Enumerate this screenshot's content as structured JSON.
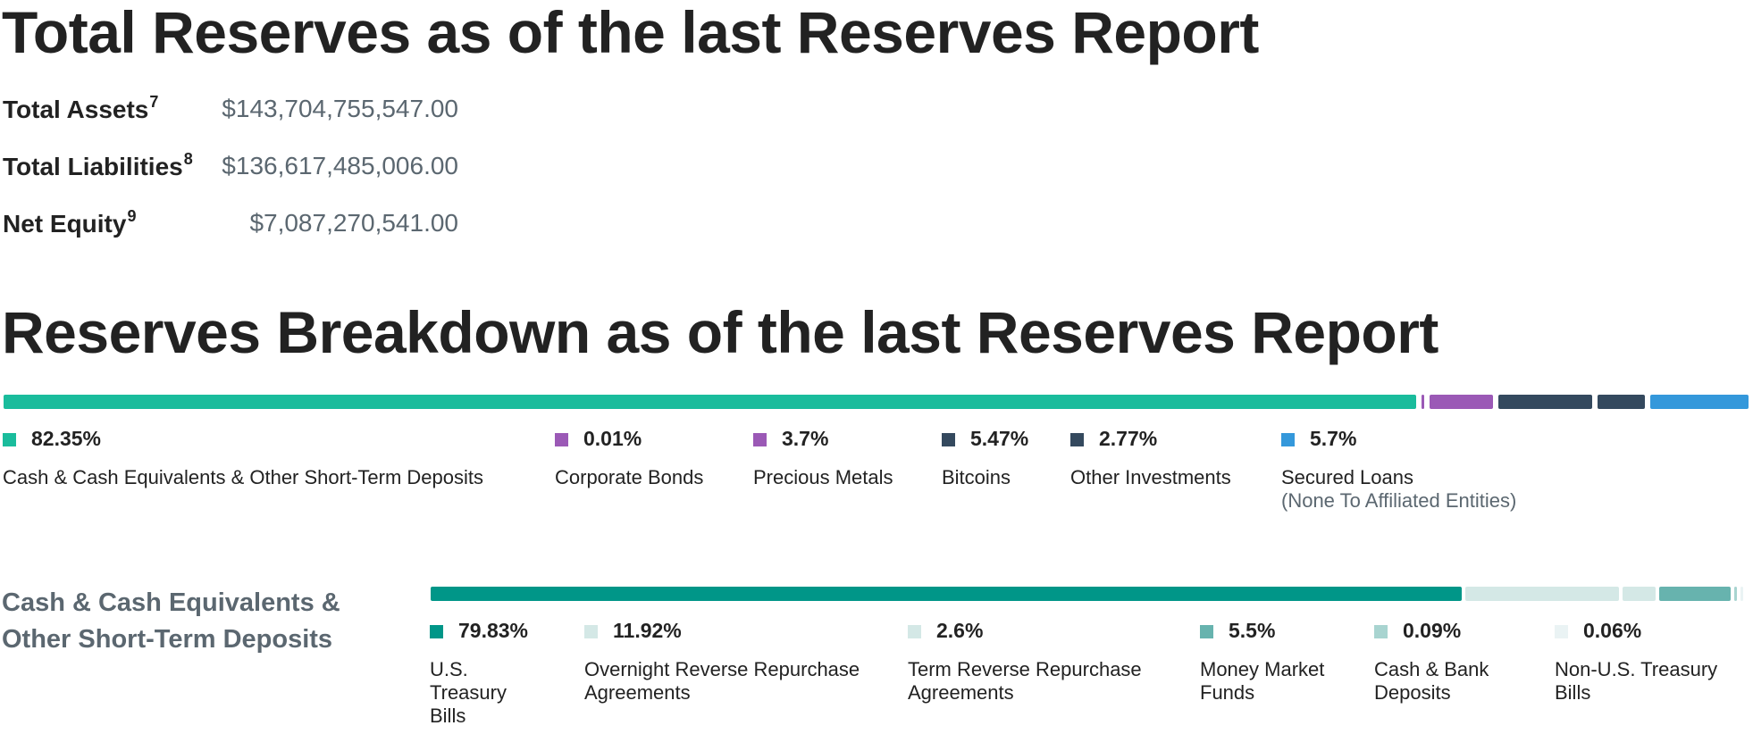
{
  "total_reserves": {
    "title": "Total Reserves as of the last Reserves Report",
    "rows": [
      {
        "label": "Total Assets",
        "note": "7",
        "value": "$143,704,755,547.00"
      },
      {
        "label": "Total Liabilities",
        "note": "8",
        "value": "$136,617,485,006.00"
      },
      {
        "label": "Net Equity",
        "note": "9",
        "value": "$7,087,270,541.00"
      }
    ]
  },
  "chart_data": [
    {
      "type": "bar",
      "title": "Reserves Breakdown as of the last Reserves Report",
      "orientation": "stacked-horizontal",
      "unit": "%",
      "categories": [
        "Cash & Cash Equivalents & Other Short-Term Deposits",
        "Corporate Bonds",
        "Precious Metals",
        "Bitcoins",
        "Other Investments",
        "Secured Loans"
      ],
      "sublabels": [
        "",
        "",
        "",
        "",
        "",
        "(None To Affiliated Entities)"
      ],
      "values": [
        82.35,
        0.01,
        3.7,
        5.47,
        2.77,
        5.7
      ],
      "labels": [
        "82.35%",
        "0.01%",
        "3.7%",
        "5.47%",
        "2.77%",
        "5.7%"
      ],
      "colors": [
        "#1abc9c",
        "#9b59b6",
        "#9b59b6",
        "#34495e",
        "#34495e",
        "#3498db"
      ]
    },
    {
      "type": "bar",
      "title": "Cash & Cash Equivalents & Other Short-Term Deposits",
      "orientation": "stacked-horizontal",
      "unit": "%",
      "categories": [
        "U.S. Treasury Bills",
        "Overnight Reverse Repurchase Agreements",
        "Term Reverse Repurchase Agreements",
        "Money Market Funds",
        "Cash & Bank Deposits",
        "Non-U.S. Treasury Bills"
      ],
      "values": [
        79.83,
        11.92,
        2.6,
        5.5,
        0.09,
        0.06
      ],
      "labels": [
        "79.83%",
        "11.92%",
        "2.6%",
        "5.5%",
        "0.09%",
        "0.06%"
      ],
      "colors": [
        "#009688",
        "#d4e8e6",
        "#d4e8e6",
        "#67b3ae",
        "#a8d4d0",
        "#eaf3f4"
      ]
    }
  ]
}
